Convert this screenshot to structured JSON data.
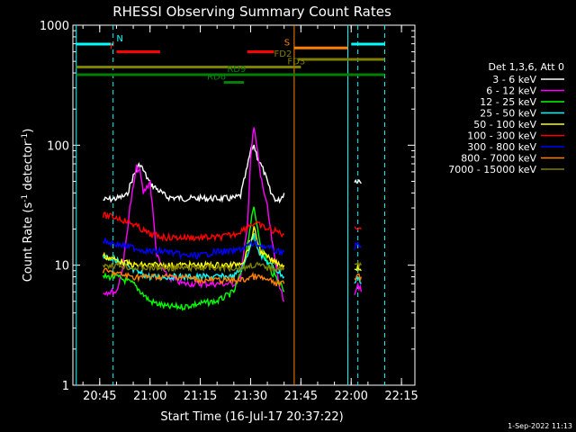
{
  "chart_data": {
    "type": "line",
    "title": "RHESSI Observing Summary Count Rates",
    "xlabel": "Start Time (16-Jul-17 20:37:22)",
    "ylabel_parts": [
      "Count Rate (s",
      "-1",
      " detector",
      "-1",
      ")"
    ],
    "yscale": "log",
    "ylim": [
      1,
      1000
    ],
    "xlim": [
      "20:37",
      "22:19"
    ],
    "x_ticks": [
      "20:45",
      "21:00",
      "21:15",
      "21:30",
      "21:45",
      "22:00",
      "22:15"
    ],
    "y_ticks": [
      "1",
      "10",
      "100",
      "1000"
    ],
    "legend_header": "Det 1,3,6, Att 0",
    "legend_position": "right",
    "timestamp": "1-Sep-2022 11:13",
    "series": [
      {
        "name": "3 - 6 keV",
        "color": "#ffffff",
        "segments": [
          {
            "x": [
              "20:46",
              "20:50",
              "20:53",
              "20:55",
              "20:57",
              "21:00",
              "21:05",
              "21:10",
              "21:15",
              "21:20",
              "21:25",
              "21:27",
              "21:29",
              "21:30",
              "21:31",
              "21:32",
              "21:34",
              "21:36",
              "21:38",
              "21:39",
              "21:40"
            ],
            "y": [
              35,
              36,
              38,
              55,
              70,
              48,
              37,
              36,
              36,
              36,
              36,
              38,
              65,
              90,
              100,
              80,
              60,
              40,
              34,
              36,
              40
            ]
          },
          {
            "x": [
              "22:01",
              "22:02",
              "22:03"
            ],
            "y": [
              50,
              52,
              48
            ]
          }
        ]
      },
      {
        "name": "6 - 12 keV",
        "color": "#ff00ff",
        "segments": [
          {
            "x": [
              "20:46",
              "20:50",
              "20:52",
              "20:54",
              "20:56",
              "20:57",
              "20:58",
              "21:00",
              "21:01",
              "21:02",
              "21:05",
              "21:10",
              "21:15",
              "21:20",
              "21:25",
              "21:27",
              "21:29",
              "21:30",
              "21:31",
              "21:32",
              "21:33",
              "21:35",
              "21:37",
              "21:39",
              "21:40"
            ],
            "y": [
              6,
              6,
              10,
              30,
              65,
              60,
              40,
              50,
              25,
              12,
              8,
              7,
              7,
              7,
              7,
              8,
              20,
              80,
              140,
              90,
              55,
              30,
              12,
              6,
              5
            ]
          },
          {
            "x": [
              "22:01",
              "22:02",
              "22:03"
            ],
            "y": [
              6,
              7,
              6
            ]
          }
        ]
      },
      {
        "name": "12 - 25 keV",
        "color": "#00ff00",
        "segments": [
          {
            "x": [
              "20:46",
              "20:50",
              "20:55",
              "21:00",
              "21:05",
              "21:10",
              "21:15",
              "21:20",
              "21:25",
              "21:28",
              "21:30",
              "21:31",
              "21:33",
              "21:36",
              "21:39",
              "21:40"
            ],
            "y": [
              8,
              8,
              7,
              5,
              4.5,
              4.5,
              4.8,
              5,
              6,
              10,
              22,
              30,
              15,
              9,
              7,
              6
            ]
          }
        ]
      },
      {
        "name": "25 - 50 keV",
        "color": "#00ffff",
        "segments": [
          {
            "x": [
              "20:46",
              "20:50",
              "20:55",
              "21:00",
              "21:05",
              "21:10",
              "21:15",
              "21:20",
              "21:25",
              "21:28",
              "21:30",
              "21:31",
              "21:33",
              "21:36",
              "21:40"
            ],
            "y": [
              12,
              11,
              9,
              8,
              8,
              8,
              8,
              8,
              8,
              10,
              15,
              18,
              12,
              10,
              8
            ]
          },
          {
            "x": [
              "22:01",
              "22:02",
              "22:03"
            ],
            "y": [
              7,
              8,
              7
            ]
          }
        ]
      },
      {
        "name": "50 - 100 keV",
        "color": "#ffff00",
        "segments": [
          {
            "x": [
              "20:46",
              "20:50",
              "20:55",
              "21:00",
              "21:05",
              "21:10",
              "21:15",
              "21:20",
              "21:25",
              "21:28",
              "21:30",
              "21:31",
              "21:33",
              "21:36",
              "21:40"
            ],
            "y": [
              12,
              11,
              10,
              10,
              10,
              10,
              10,
              10,
              10,
              11,
              16,
              20,
              13,
              11,
              10
            ]
          },
          {
            "x": [
              "22:01",
              "22:02",
              "22:03"
            ],
            "y": [
              9,
              10,
              9
            ]
          }
        ]
      },
      {
        "name": "100 - 300 keV",
        "color": "#ff0000",
        "segments": [
          {
            "x": [
              "20:46",
              "20:50",
              "20:55",
              "21:00",
              "21:05",
              "21:10",
              "21:15",
              "21:20",
              "21:25",
              "21:28",
              "21:30",
              "21:32",
              "21:35",
              "21:38",
              "21:40"
            ],
            "y": [
              26,
              25,
              22,
              18,
              17,
              17,
              17,
              17,
              18,
              20,
              22,
              22,
              20,
              19,
              18
            ]
          },
          {
            "x": [
              "22:01",
              "22:02",
              "22:03"
            ],
            "y": [
              20,
              21,
              20
            ]
          }
        ]
      },
      {
        "name": "300 - 800 keV",
        "color": "#0000ff",
        "segments": [
          {
            "x": [
              "20:46",
              "20:50",
              "20:55",
              "21:00",
              "21:05",
              "21:10",
              "21:15",
              "21:20",
              "21:25",
              "21:28",
              "21:30",
              "21:32",
              "21:35",
              "21:38",
              "21:40"
            ],
            "y": [
              16,
              15,
              14,
              13,
              13,
              12,
              12,
              13,
              13,
              14,
              15,
              15,
              14,
              13,
              13
            ]
          },
          {
            "x": [
              "22:01",
              "22:02",
              "22:03"
            ],
            "y": [
              14,
              15,
              14
            ]
          }
        ]
      },
      {
        "name": "800 - 7000 keV",
        "color": "#ff8000",
        "segments": [
          {
            "x": [
              "20:46",
              "20:50",
              "20:55",
              "21:00",
              "21:05",
              "21:10",
              "21:15",
              "21:20",
              "21:25",
              "21:28",
              "21:30",
              "21:32",
              "21:35",
              "21:38",
              "21:40"
            ],
            "y": [
              9,
              8.5,
              8,
              8,
              8,
              8,
              7.5,
              7.5,
              7.5,
              7.5,
              8,
              8,
              7.5,
              7,
              7
            ]
          },
          {
            "x": [
              "22:01",
              "22:02",
              "22:03"
            ],
            "y": [
              8,
              8,
              8
            ]
          }
        ]
      },
      {
        "name": "7000 - 15000 keV",
        "color": "#808000",
        "segments": [
          {
            "x": [
              "20:46",
              "20:50",
              "20:55",
              "21:00",
              "21:05",
              "21:10",
              "21:15",
              "21:20",
              "21:25",
              "21:28",
              "21:30",
              "21:32",
              "21:35",
              "21:38",
              "21:40"
            ],
            "y": [
              10,
              10,
              9.5,
              9.5,
              9.5,
              9.5,
              9.5,
              9.5,
              9.5,
              9.5,
              10,
              10,
              9.5,
              9.5,
              9.5
            ]
          },
          {
            "x": [
              "22:01",
              "22:02",
              "22:03"
            ],
            "y": [
              10,
              10,
              10
            ]
          }
        ]
      }
    ],
    "vlines": [
      {
        "x": "20:38",
        "color": "#00ffff",
        "style": "solid"
      },
      {
        "x": "20:49",
        "color": "#00ffff",
        "style": "dashed"
      },
      {
        "x": "21:43",
        "color": "#ff8000",
        "style": "solid"
      },
      {
        "x": "21:59",
        "color": "#00ffff",
        "style": "solid"
      },
      {
        "x": "22:02",
        "color": "#00ffff",
        "style": "dashed"
      },
      {
        "x": "22:10",
        "color": "#00ffff",
        "style": "dashed"
      }
    ],
    "flag_bars": [
      {
        "label": "N",
        "color": "#00ffff",
        "level": 0,
        "segments": [
          [
            "20:38",
            "20:49"
          ],
          [
            "22:00",
            "22:10"
          ]
        ],
        "label_at": "20:50"
      },
      {
        "label": "F",
        "color": "#ff0000",
        "level": 1,
        "segments": [
          [
            "20:50",
            "21:03"
          ],
          [
            "21:29",
            "21:37"
          ]
        ],
        "label_at": "20:48"
      },
      {
        "label": "S",
        "color": "#ff8000",
        "level": 0.5,
        "segments": [
          [
            "21:43",
            "21:59"
          ]
        ],
        "label_at": "21:40"
      },
      {
        "label": "FD2",
        "color": "#808000",
        "level": 2,
        "segments": [
          [
            "21:44",
            "22:10"
          ]
        ],
        "label_at": "21:37"
      },
      {
        "label": "FD3",
        "color": "#808000",
        "level": 3,
        "segments": [
          [
            "20:38",
            "21:45"
          ]
        ],
        "label_at": "21:41"
      },
      {
        "label": "RD9",
        "color": "#008000",
        "level": 4,
        "segments": [
          [
            "20:38",
            "22:10"
          ]
        ],
        "label_at": "21:23"
      },
      {
        "label": "RD6",
        "color": "#008000",
        "level": 5,
        "segments": [
          [
            "21:22",
            "21:28"
          ]
        ],
        "label_at": "21:17"
      }
    ]
  }
}
